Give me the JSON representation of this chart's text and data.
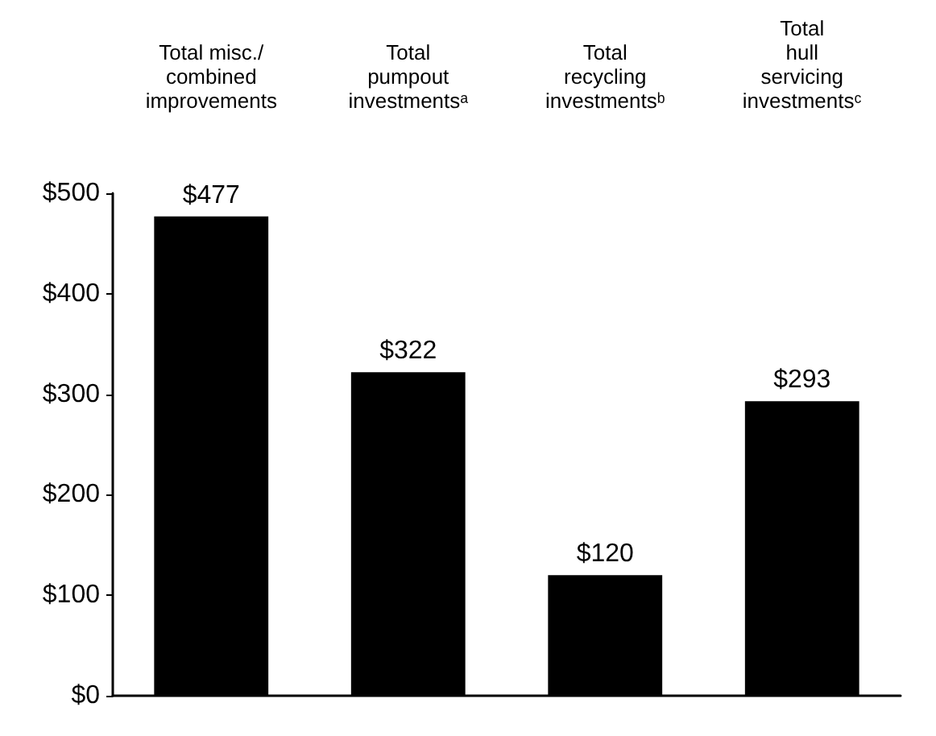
{
  "chart_data": {
    "type": "bar",
    "categories": [
      "Total misc./\ncombined\nimprovements",
      "Total\npumpout\ninvestmentsᵃ",
      "Total\nrecycling\ninvestmentsᵇ",
      "Total\nhull\nservicing\ninvestmentsᶜ"
    ],
    "values": [
      477,
      322,
      120,
      293
    ],
    "value_labels": [
      "$477",
      "$322",
      "$120",
      "$293"
    ],
    "color": "#000000",
    "ylim": [
      0,
      500
    ],
    "yticks": [
      {
        "value": 0,
        "label": "$0"
      },
      {
        "value": 100,
        "label": "$100"
      },
      {
        "value": 200,
        "label": "$200"
      },
      {
        "value": 300,
        "label": "$300"
      },
      {
        "value": 400,
        "label": "$400"
      },
      {
        "value": 500,
        "label": "$500"
      }
    ],
    "grid": false
  }
}
